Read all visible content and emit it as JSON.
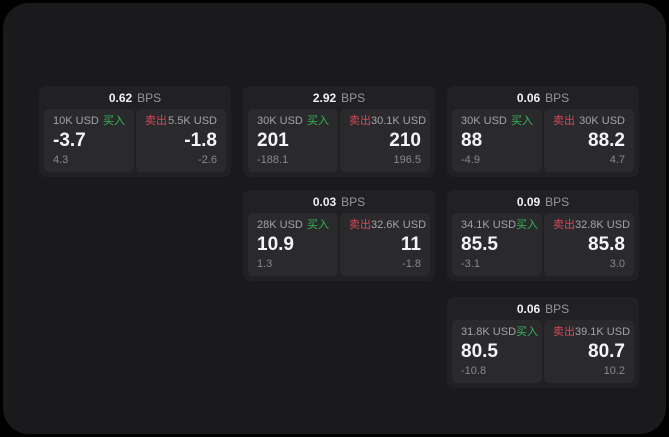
{
  "labels": {
    "bps": "BPS",
    "buy": "买入",
    "sell": "卖出"
  },
  "colors": {
    "buy_green": "#36b457",
    "sell_red": "#d2495a",
    "window_bg": "#1a1a1c",
    "card_bg": "#212124",
    "panel_bg": "#2a2a2d"
  },
  "cards": [
    {
      "bps": "0.62",
      "buy": {
        "amount": "10K USD",
        "value": "-3.7",
        "delta": "4.3"
      },
      "sell": {
        "amount": "5.5K USD",
        "value": "-1.8",
        "delta": "-2.6"
      }
    },
    {
      "bps": "2.92",
      "buy": {
        "amount": "30K USD",
        "value": "201",
        "delta": "-188.1"
      },
      "sell": {
        "amount": "30.1K USD",
        "value": "210",
        "delta": "196.5"
      }
    },
    {
      "bps": "0.06",
      "buy": {
        "amount": "30K USD",
        "value": "88",
        "delta": "-4.9"
      },
      "sell": {
        "amount": "30K USD",
        "value": "88.2",
        "delta": "4.7"
      }
    },
    {
      "bps": "0.03",
      "buy": {
        "amount": "28K USD",
        "value": "10.9",
        "delta": "1.3"
      },
      "sell": {
        "amount": "32.6K USD",
        "value": "11",
        "delta": "-1.8"
      }
    },
    {
      "bps": "0.09",
      "buy": {
        "amount": "34.1K USD",
        "value": "85.5",
        "delta": "-3.1"
      },
      "sell": {
        "amount": "32.8K USD",
        "value": "85.8",
        "delta": "3.0"
      }
    },
    {
      "bps": "0.06",
      "buy": {
        "amount": "31.8K USD",
        "value": "80.5",
        "delta": "-10.8"
      },
      "sell": {
        "amount": "39.1K USD",
        "value": "80.7",
        "delta": "10.2"
      }
    }
  ]
}
